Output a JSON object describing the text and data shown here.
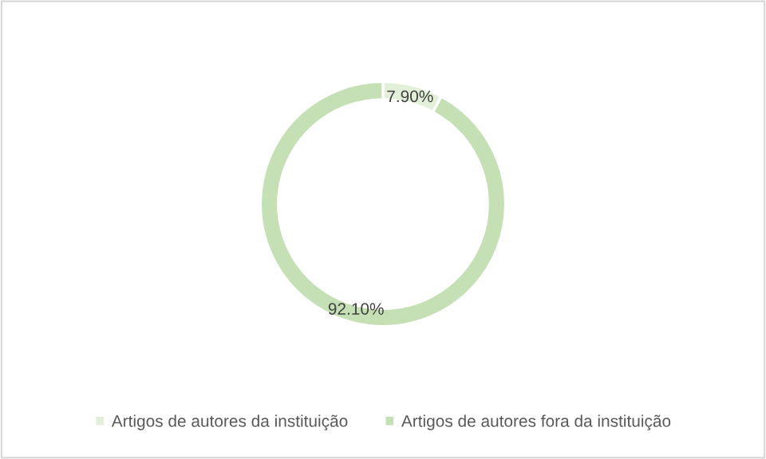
{
  "chart_data": {
    "type": "donut",
    "categories": [
      "Artigos de autores da instituição",
      "Artigos de autores fora da instituição"
    ],
    "values": [
      7.9,
      92.1
    ],
    "colors": [
      "#e2efd9",
      "#c5e0b4"
    ],
    "value_labels": [
      "7.90%",
      "92.10%"
    ],
    "legend": "bottom"
  }
}
